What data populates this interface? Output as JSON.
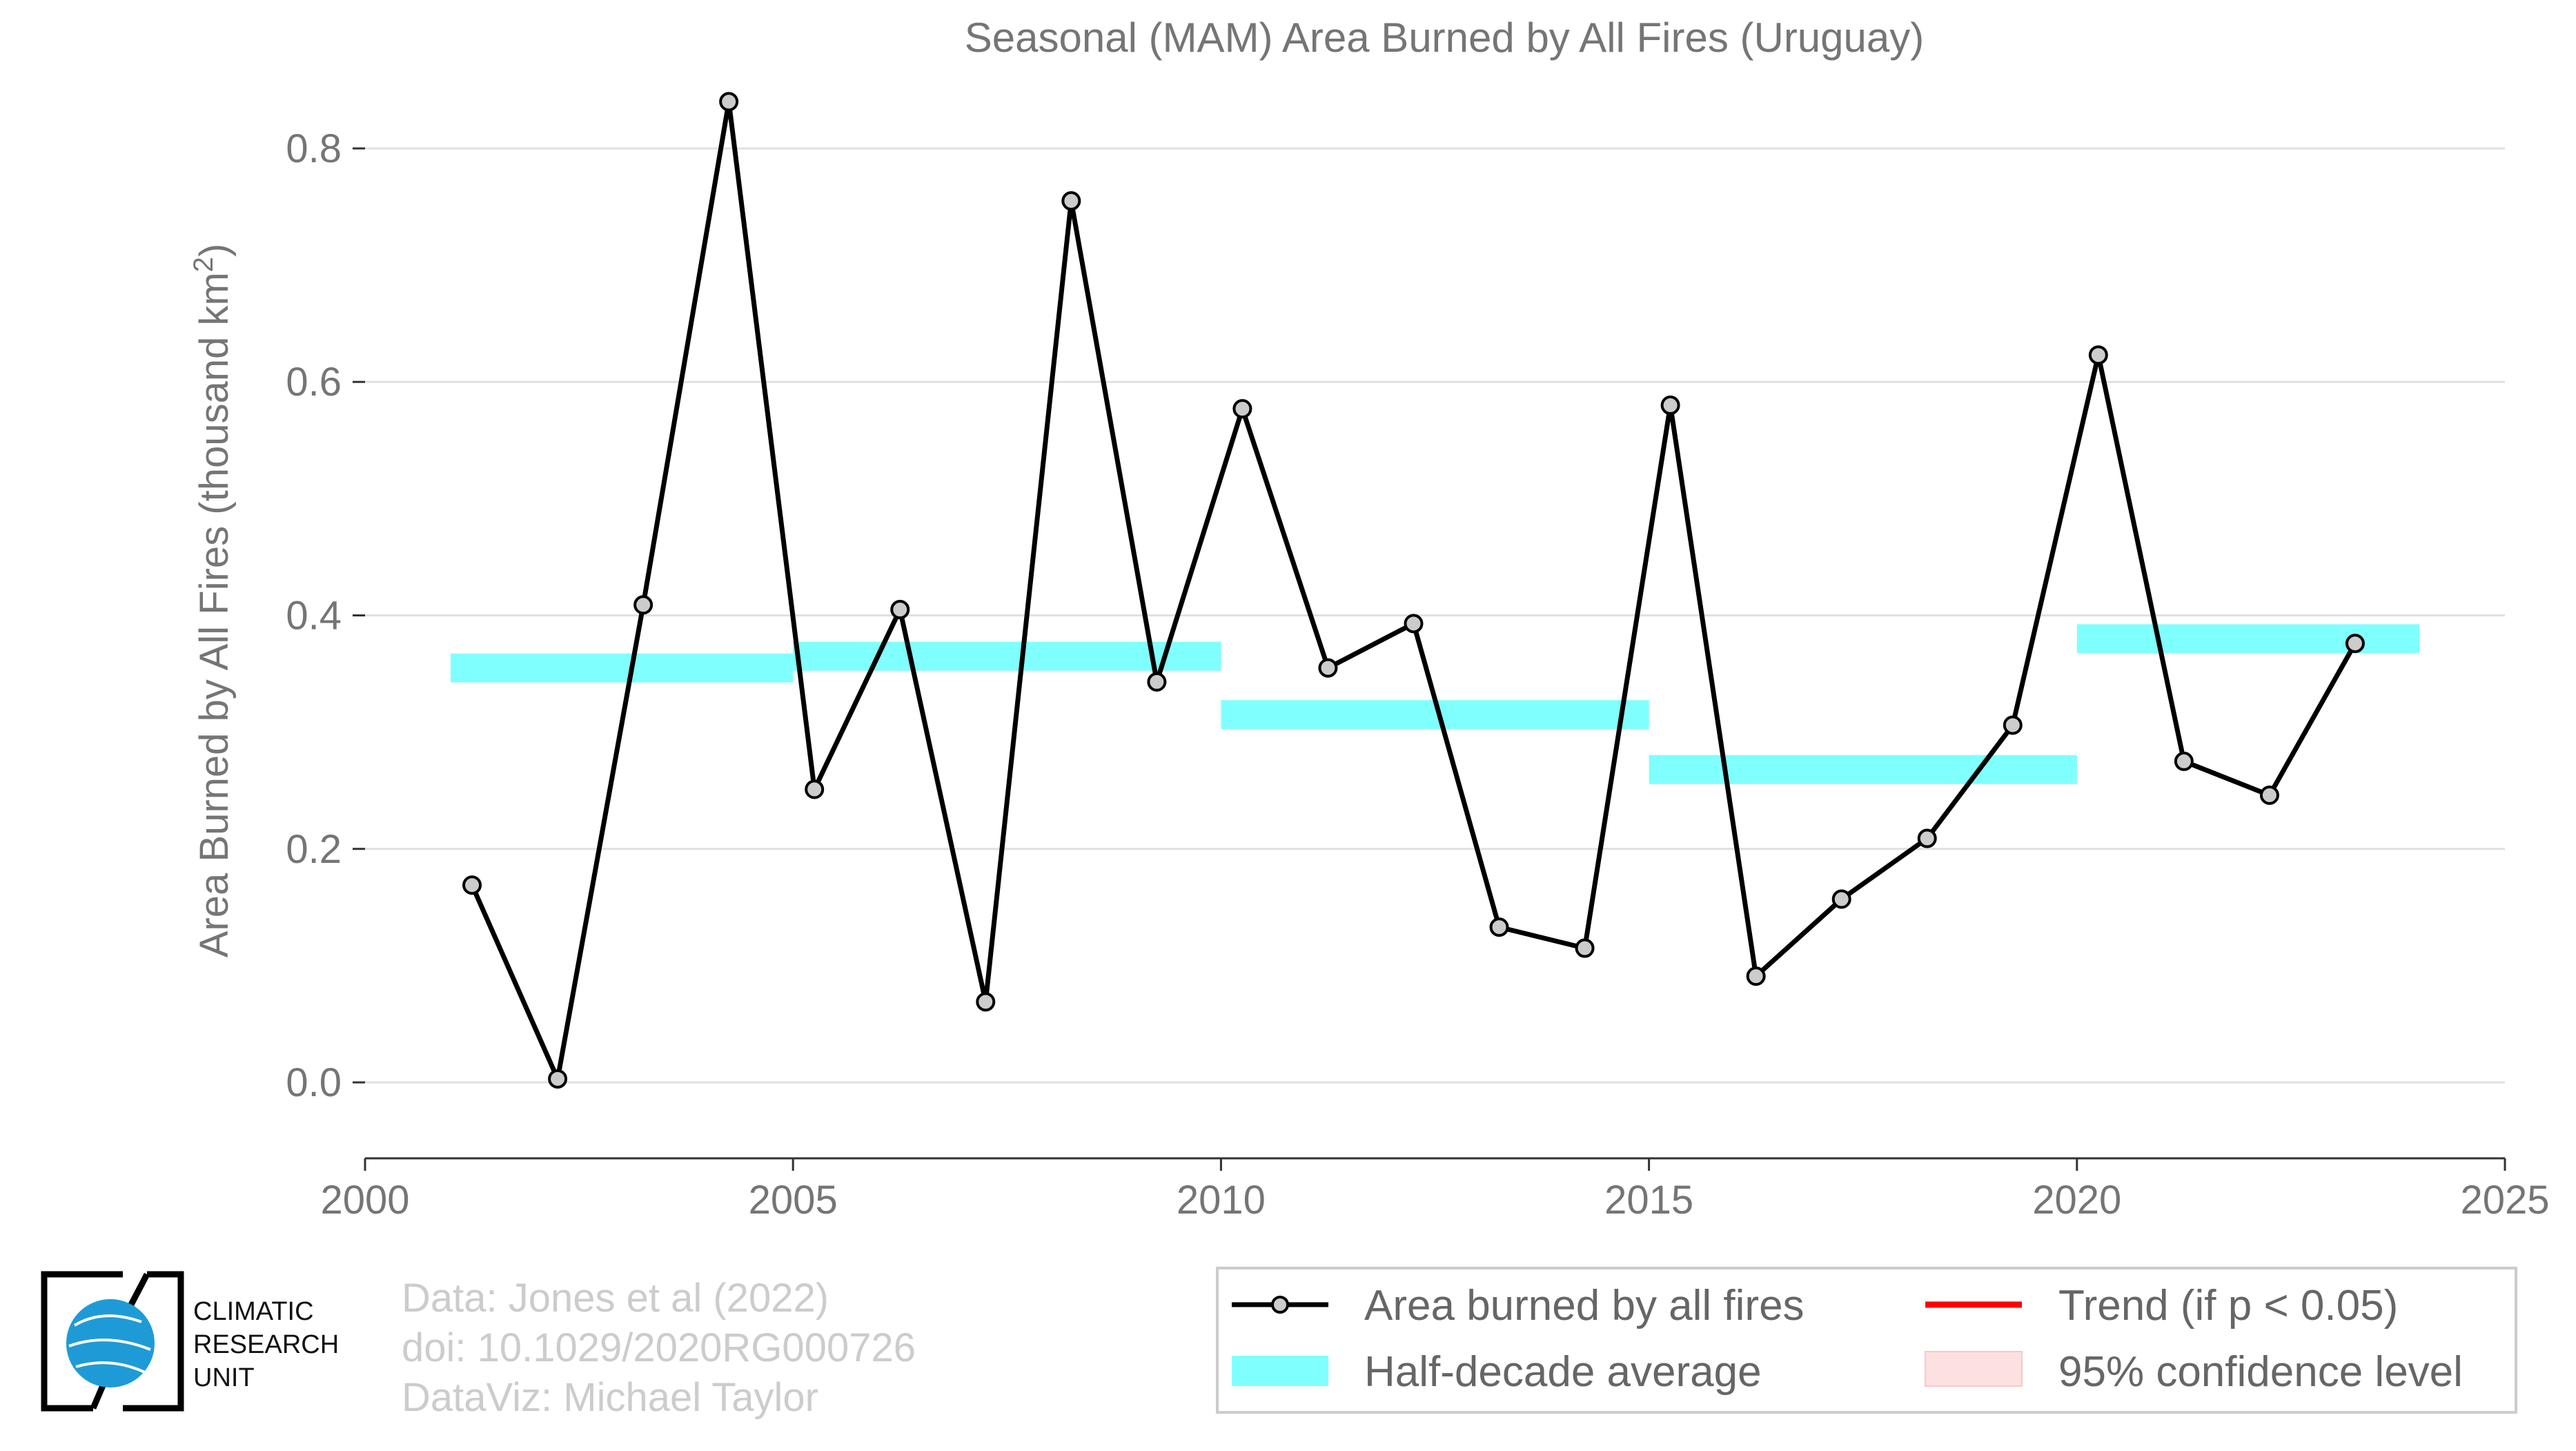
{
  "chart_data": {
    "type": "line",
    "title": "Seasonal (MAM) Area Burned by All Fires (Uruguay)",
    "ylabel": "Area Burned by All Fires (thousand km²)",
    "ylabel_main": "Area Burned by All Fires (thousand km",
    "ylabel_sup": "2",
    "ylabel_close": ")",
    "xlim": [
      2000,
      2025
    ],
    "ylim": [
      -0.065,
      0.865
    ],
    "xticks": [
      2000,
      2005,
      2010,
      2015,
      2020,
      2025
    ],
    "yticks": [
      0.0,
      0.2,
      0.4,
      0.6,
      0.8
    ],
    "ytick_labels": [
      "0.0",
      "0.2",
      "0.4",
      "0.6",
      "0.8"
    ],
    "grid": true,
    "series": [
      {
        "name": "Area burned by all fires",
        "color": "#000000",
        "marker_fill": "#cccccc",
        "x": [
          2001.25,
          2002.25,
          2003.25,
          2004.25,
          2005.25,
          2006.25,
          2007.25,
          2008.25,
          2009.25,
          2010.25,
          2011.25,
          2012.25,
          2013.25,
          2014.25,
          2015.25,
          2016.25,
          2017.25,
          2018.25,
          2019.25,
          2020.25,
          2021.25,
          2022.25,
          2023.25
        ],
        "y": [
          0.169,
          0.003,
          0.409,
          0.84,
          0.251,
          0.405,
          0.069,
          0.755,
          0.343,
          0.577,
          0.355,
          0.393,
          0.133,
          0.115,
          0.58,
          0.091,
          0.157,
          0.209,
          0.306,
          0.623,
          0.275,
          0.246,
          0.376
        ]
      }
    ],
    "half_decade_average": {
      "name": "Half-decade average",
      "color": "#80ffff",
      "bars": [
        {
          "x_start": 2001.0,
          "x_end": 2005.0,
          "y": 0.355
        },
        {
          "x_start": 2005.0,
          "x_end": 2010.0,
          "y": 0.365
        },
        {
          "x_start": 2010.0,
          "x_end": 2015.0,
          "y": 0.315
        },
        {
          "x_start": 2015.0,
          "x_end": 2020.0,
          "y": 0.268
        },
        {
          "x_start": 2020.0,
          "x_end": 2024.0,
          "y": 0.38
        }
      ]
    },
    "legend": {
      "placement": "bottom-right",
      "entries": [
        {
          "label": "Area burned by all fires",
          "kind": "line-marker",
          "color": "#000000"
        },
        {
          "label": "Trend (if p < 0.05)",
          "kind": "line",
          "color": "#ff0000"
        },
        {
          "label": "Half-decade average",
          "kind": "band",
          "color": "#80ffff"
        },
        {
          "label": "95% confidence level",
          "kind": "patch",
          "color": "#fde0e0"
        }
      ]
    }
  },
  "credits": {
    "line1": "Data: Jones et al (2022)",
    "line2": "doi: 10.1029/2020RG000726",
    "line3": "DataViz: Michael Taylor"
  },
  "logo": {
    "line1": "CLIMATIC",
    "line2": "RESEARCH",
    "line3": "UNIT",
    "globe_color": "#1e9bd7"
  }
}
